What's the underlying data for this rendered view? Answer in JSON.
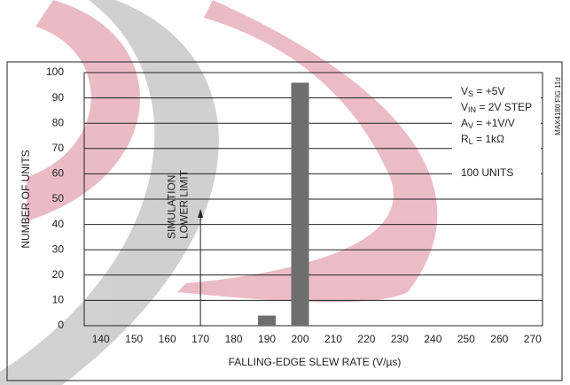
{
  "chart_data": {
    "type": "bar",
    "x": [
      190,
      200
    ],
    "values": [
      4,
      96
    ],
    "color": "#6e6e6e",
    "xlim": [
      135,
      273
    ],
    "xticks": [
      140,
      150,
      160,
      170,
      180,
      190,
      200,
      210,
      220,
      230,
      240,
      250,
      260,
      270
    ],
    "ylim": [
      0,
      100
    ],
    "yticks": [
      0,
      10,
      20,
      30,
      40,
      50,
      60,
      70,
      80,
      90,
      100
    ],
    "grid": true,
    "xlabel": "FALLING-EDGE SLEW RATE (V/µs)",
    "ylabel": "NUMBER OF UNITS",
    "annotation": {
      "lines": [
        "SIMULATION",
        "LOWER LIMIT"
      ],
      "x": 170
    },
    "conditions": [
      {
        "main": "V",
        "sub": "S",
        "rest": " = +5V"
      },
      {
        "main": "V",
        "sub": "IN",
        "rest": " = 2V STEP"
      },
      {
        "main": "A",
        "sub": "V",
        "rest": " = +1V/V"
      },
      {
        "main": "R",
        "sub": "L",
        "rest": " = 1kΩ"
      }
    ],
    "units_note": "100 UNITS",
    "figure_id": "MAX4180 FIG 11d"
  }
}
